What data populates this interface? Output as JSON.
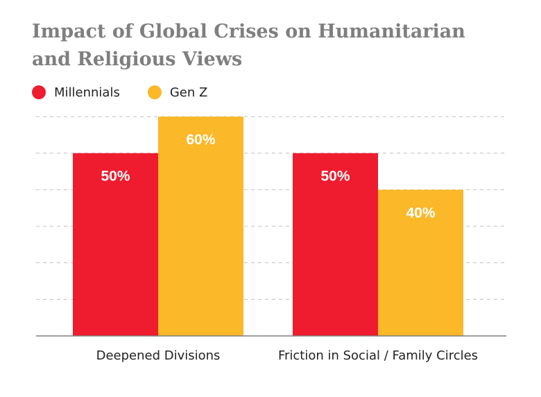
{
  "title_lines": [
    "Impact of Global Crises on Humanitarian",
    "and Religious Views"
  ],
  "colors": {
    "Millennials": "#ee1c2e",
    "Gen Z": "#fbb829",
    "title": "#7f7f7f",
    "grid": "#bfbfbf",
    "axis": "#7f7f7f"
  },
  "legend": [
    {
      "label": "Millennials",
      "color": "#ee1c2e"
    },
    {
      "label": "Gen Z",
      "color": "#fbb829"
    }
  ],
  "chart_data": {
    "type": "bar",
    "title": "Impact of Global Crises on Humanitarian and Religious Views",
    "categories": [
      "Deepened Divisions",
      "Friction in Social / Family Circles"
    ],
    "series": [
      {
        "name": "Millennials",
        "values": [
          50,
          50
        ],
        "labels": [
          "50%",
          "50%"
        ]
      },
      {
        "name": "Gen Z",
        "values": [
          60,
          40
        ],
        "labels": [
          "60%",
          "40%"
        ]
      }
    ],
    "ylim": [
      0,
      60
    ],
    "grid": true,
    "legend_position": "top-left",
    "xlabel": "",
    "ylabel": ""
  }
}
